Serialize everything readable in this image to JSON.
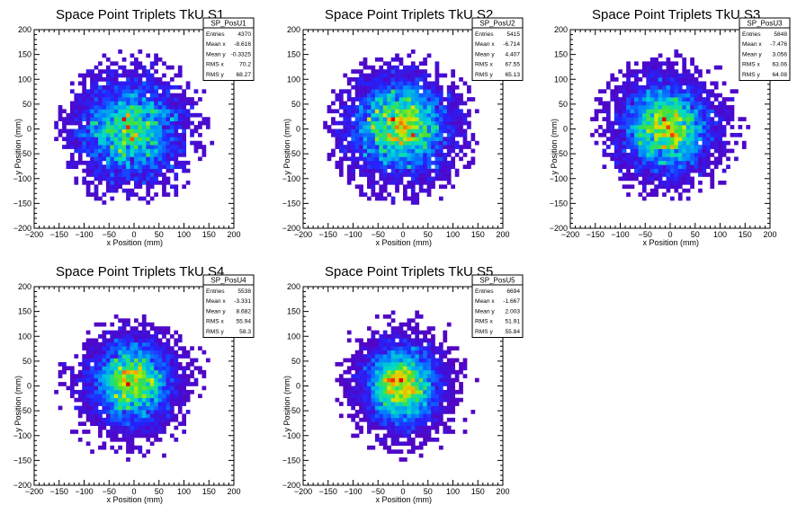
{
  "chart_data": [
    {
      "type": "heatmap",
      "title": "Space Point Triplets TkU S1",
      "xlabel": "x Position (mm)",
      "ylabel": "y Position (mm)",
      "xlim": [
        -200,
        200
      ],
      "ylim": [
        -200,
        200
      ],
      "xticks": [
        "−200",
        "−150",
        "−100",
        "−50",
        "0",
        "50",
        "100",
        "150",
        "200"
      ],
      "yticks": [
        "−200",
        "−150",
        "−100",
        "−50",
        "0",
        "50",
        "100",
        "150",
        "200"
      ],
      "stats": {
        "name": "SP_PosU1",
        "rows": [
          [
            "Entries",
            "4370"
          ],
          [
            "Mean x",
            "-8.616"
          ],
          [
            "Mean y",
            "-0.3325"
          ],
          [
            "RMS x",
            "70.2"
          ],
          [
            "RMS y",
            "68.27"
          ]
        ]
      },
      "distribution": {
        "mean_x": -8.616,
        "mean_y": -0.3325,
        "rms_x": 70.2,
        "rms_y": 68.27,
        "radius": 158
      },
      "seed": 11
    },
    {
      "type": "heatmap",
      "title": "Space Point Triplets TkU S2",
      "xlabel": "x Position (mm)",
      "ylabel": "y Position (mm)",
      "xlim": [
        -200,
        200
      ],
      "ylim": [
        -200,
        200
      ],
      "xticks": [
        "−200",
        "−150",
        "−100",
        "−50",
        "0",
        "50",
        "100",
        "150",
        "200"
      ],
      "yticks": [
        "−200",
        "−150",
        "−100",
        "−50",
        "0",
        "50",
        "100",
        "150",
        "200"
      ],
      "stats": {
        "name": "SP_PosU2",
        "rows": [
          [
            "Entries",
            "5415"
          ],
          [
            "Mean x",
            "-6.714"
          ],
          [
            "Mean y",
            "4.407"
          ],
          [
            "RMS x",
            "67.55"
          ],
          [
            "RMS y",
            "65.13"
          ]
        ]
      },
      "distribution": {
        "mean_x": -6.714,
        "mean_y": 4.407,
        "rms_x": 67.55,
        "rms_y": 65.13,
        "radius": 158
      },
      "seed": 23
    },
    {
      "type": "heatmap",
      "title": "Space Point Triplets TkU S3",
      "xlabel": "x Position (mm)",
      "ylabel": "y Position (mm)",
      "xlim": [
        -200,
        200
      ],
      "ylim": [
        -200,
        200
      ],
      "xticks": [
        "−200",
        "−150",
        "−100",
        "−50",
        "0",
        "50",
        "100",
        "150",
        "200"
      ],
      "yticks": [
        "−200",
        "−150",
        "−100",
        "−50",
        "0",
        "50",
        "100",
        "150",
        "200"
      ],
      "stats": {
        "name": "SP_PosU3",
        "rows": [
          [
            "Entries",
            "5848"
          ],
          [
            "Mean x",
            "-7.476"
          ],
          [
            "Mean y",
            "3.056"
          ],
          [
            "RMS x",
            "63.06"
          ],
          [
            "RMS y",
            "64.08"
          ]
        ]
      },
      "distribution": {
        "mean_x": -7.476,
        "mean_y": 3.056,
        "rms_x": 63.06,
        "rms_y": 64.08,
        "radius": 158
      },
      "seed": 37
    },
    {
      "type": "heatmap",
      "title": "Space Point Triplets TkU S4",
      "xlabel": "x Position (mm)",
      "ylabel": "y Position (mm)",
      "xlim": [
        -200,
        200
      ],
      "ylim": [
        -200,
        200
      ],
      "xticks": [
        "−200",
        "−150",
        "−100",
        "−50",
        "0",
        "50",
        "100",
        "150",
        "200"
      ],
      "yticks": [
        "−200",
        "−150",
        "−100",
        "−50",
        "0",
        "50",
        "100",
        "150",
        "200"
      ],
      "stats": {
        "name": "SP_PosU4",
        "rows": [
          [
            "Entries",
            "5538"
          ],
          [
            "Mean x",
            "-3.331"
          ],
          [
            "Mean y",
            "8.682"
          ],
          [
            "RMS x",
            "55.94"
          ],
          [
            "RMS y",
            "58.3"
          ]
        ]
      },
      "distribution": {
        "mean_x": -3.331,
        "mean_y": 8.682,
        "rms_x": 55.94,
        "rms_y": 58.3,
        "radius": 158
      },
      "seed": 53
    },
    {
      "type": "heatmap",
      "title": "Space Point Triplets TkU S5",
      "xlabel": "x Position (mm)",
      "ylabel": "y Position (mm)",
      "xlim": [
        -200,
        200
      ],
      "ylim": [
        -200,
        200
      ],
      "xticks": [
        "−200",
        "−150",
        "−100",
        "−50",
        "0",
        "50",
        "100",
        "150",
        "200"
      ],
      "yticks": [
        "−200",
        "−150",
        "−100",
        "−50",
        "0",
        "50",
        "100",
        "150",
        "200"
      ],
      "stats": {
        "name": "SP_PosU5",
        "rows": [
          [
            "Entries",
            "6694"
          ],
          [
            "Mean x",
            "-1.667"
          ],
          [
            "Mean y",
            "2.003"
          ],
          [
            "RMS x",
            "51.91"
          ],
          [
            "RMS y",
            "55.84"
          ]
        ]
      },
      "distribution": {
        "mean_x": -1.667,
        "mean_y": 2.003,
        "rms_x": 51.91,
        "rms_y": 55.84,
        "radius": 158
      },
      "seed": 71
    }
  ]
}
